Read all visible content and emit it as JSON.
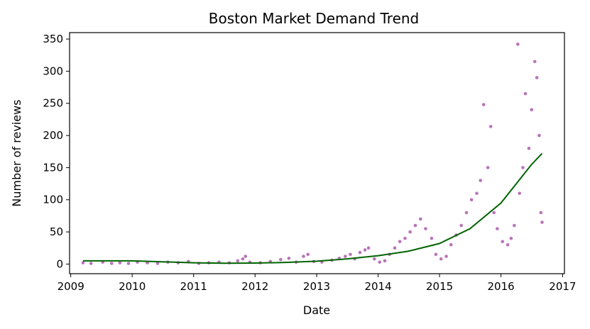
{
  "chart_data": {
    "type": "scatter",
    "title": "Boston Market Demand Trend",
    "xlabel": "Date",
    "ylabel": "Number of reviews",
    "xlim": [
      "2008-12-25",
      "2017-01-12"
    ],
    "ylim": [
      -15,
      360
    ],
    "x_ticks": [
      "2009",
      "2010",
      "2011",
      "2012",
      "2013",
      "2014",
      "2015",
      "2016",
      "2017"
    ],
    "y_ticks": [
      0,
      50,
      100,
      150,
      200,
      250,
      300,
      350
    ],
    "grid": false,
    "colors": {
      "points": "#800080",
      "trend": "#006400"
    },
    "series": [
      {
        "type": "scatter",
        "points": [
          [
            "2009-03-15",
            2
          ],
          [
            "2009-05-01",
            1
          ],
          [
            "2009-07-10",
            3
          ],
          [
            "2009-09-01",
            1
          ],
          [
            "2009-10-20",
            2
          ],
          [
            "2009-12-10",
            1
          ],
          [
            "2010-02-01",
            3
          ],
          [
            "2010-04-01",
            2
          ],
          [
            "2010-06-01",
            1
          ],
          [
            "2010-08-01",
            3
          ],
          [
            "2010-10-01",
            2
          ],
          [
            "2010-12-01",
            4
          ],
          [
            "2011-02-01",
            1
          ],
          [
            "2011-04-01",
            2
          ],
          [
            "2011-06-01",
            3
          ],
          [
            "2011-08-01",
            2
          ],
          [
            "2011-09-20",
            5
          ],
          [
            "2011-10-20",
            8
          ],
          [
            "2011-11-05",
            12
          ],
          [
            "2011-12-01",
            3
          ],
          [
            "2012-02-01",
            2
          ],
          [
            "2012-04-01",
            4
          ],
          [
            "2012-06-01",
            7
          ],
          [
            "2012-07-20",
            9
          ],
          [
            "2012-09-01",
            3
          ],
          [
            "2012-10-15",
            12
          ],
          [
            "2012-11-10",
            15
          ],
          [
            "2012-12-15",
            4
          ],
          [
            "2013-02-01",
            3
          ],
          [
            "2013-04-01",
            6
          ],
          [
            "2013-05-15",
            9
          ],
          [
            "2013-06-20",
            12
          ],
          [
            "2013-07-20",
            15
          ],
          [
            "2013-08-15",
            8
          ],
          [
            "2013-09-15",
            18
          ],
          [
            "2013-10-15",
            22
          ],
          [
            "2013-11-05",
            25
          ],
          [
            "2013-12-10",
            8
          ],
          [
            "2014-01-10",
            3
          ],
          [
            "2014-02-10",
            5
          ],
          [
            "2014-03-10",
            15
          ],
          [
            "2014-04-10",
            25
          ],
          [
            "2014-05-10",
            35
          ],
          [
            "2014-06-10",
            40
          ],
          [
            "2014-07-10",
            50
          ],
          [
            "2014-08-10",
            60
          ],
          [
            "2014-09-10",
            70
          ],
          [
            "2014-10-10",
            55
          ],
          [
            "2014-11-15",
            40
          ],
          [
            "2014-12-10",
            15
          ],
          [
            "2015-01-10",
            8
          ],
          [
            "2015-02-10",
            12
          ],
          [
            "2015-03-10",
            30
          ],
          [
            "2015-04-10",
            45
          ],
          [
            "2015-05-10",
            60
          ],
          [
            "2015-06-10",
            80
          ],
          [
            "2015-07-10",
            100
          ],
          [
            "2015-08-10",
            110
          ],
          [
            "2015-09-01",
            130
          ],
          [
            "2015-09-20",
            248
          ],
          [
            "2015-10-15",
            150
          ],
          [
            "2015-11-01",
            214
          ],
          [
            "2015-11-20",
            80
          ],
          [
            "2015-12-10",
            55
          ],
          [
            "2016-01-10",
            35
          ],
          [
            "2016-02-10",
            30
          ],
          [
            "2016-03-01",
            40
          ],
          [
            "2016-03-20",
            60
          ],
          [
            "2016-04-10",
            342
          ],
          [
            "2016-04-20",
            110
          ],
          [
            "2016-05-10",
            150
          ],
          [
            "2016-05-25",
            265
          ],
          [
            "2016-06-15",
            180
          ],
          [
            "2016-07-01",
            240
          ],
          [
            "2016-07-20",
            315
          ],
          [
            "2016-08-01",
            290
          ],
          [
            "2016-08-15",
            200
          ],
          [
            "2016-08-25",
            80
          ],
          [
            "2016-09-01",
            65
          ]
        ]
      },
      {
        "type": "line",
        "points": [
          [
            "2009-03-15",
            5
          ],
          [
            "2010-01-01",
            5
          ],
          [
            "2010-07-01",
            3.5
          ],
          [
            "2011-01-01",
            2
          ],
          [
            "2011-07-01",
            1.2
          ],
          [
            "2012-01-01",
            1.5
          ],
          [
            "2012-07-01",
            2.5
          ],
          [
            "2013-01-01",
            4.5
          ],
          [
            "2013-07-01",
            8
          ],
          [
            "2014-01-01",
            13
          ],
          [
            "2014-07-01",
            20
          ],
          [
            "2015-01-01",
            32
          ],
          [
            "2015-07-01",
            55
          ],
          [
            "2016-01-01",
            95
          ],
          [
            "2016-04-01",
            125
          ],
          [
            "2016-07-01",
            155
          ],
          [
            "2016-09-01",
            172
          ]
        ]
      }
    ]
  }
}
